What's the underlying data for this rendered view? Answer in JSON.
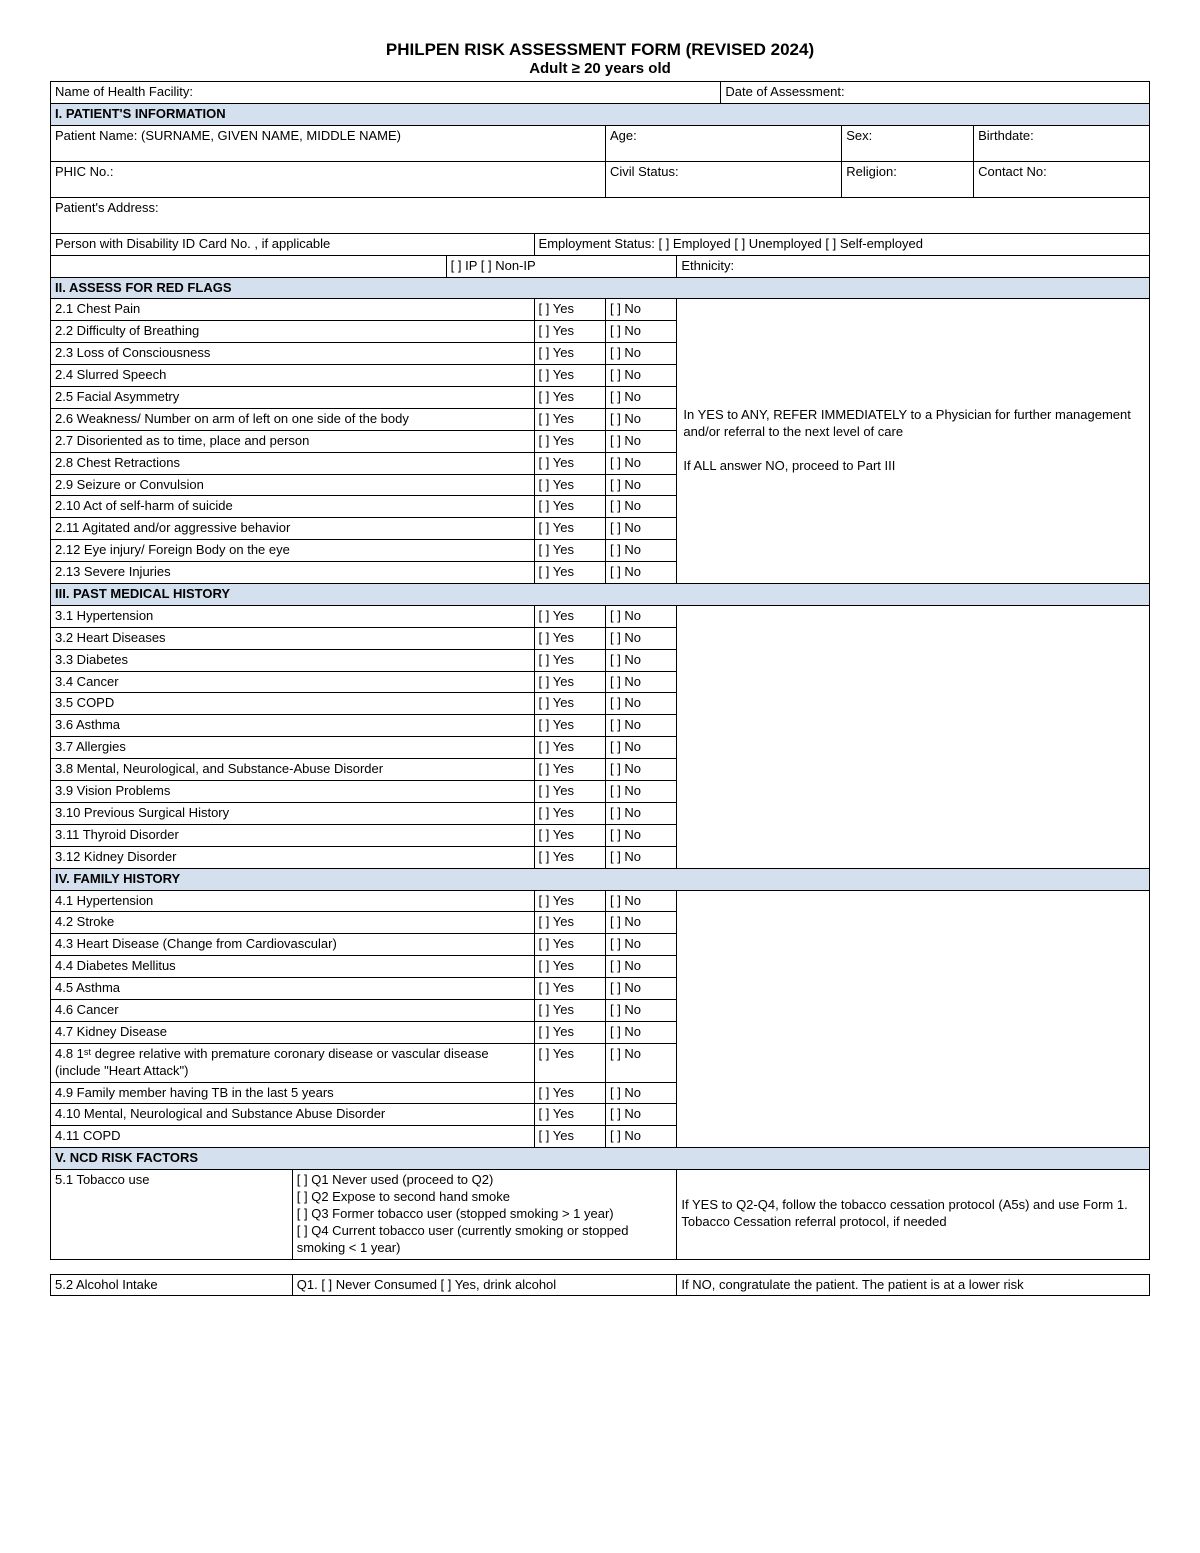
{
  "title": "PHILPEN RISK ASSESSMENT FORM (REVISED 2024)",
  "subtitle": "Adult ≥ 20 years old",
  "colors": {
    "section_bg": "#d5e0ee",
    "border": "#000000",
    "text": "#000000",
    "bg": "#ffffff"
  },
  "header": {
    "facility_label": "Name of Health Facility:",
    "date_label": "Date of Assessment:"
  },
  "s1": {
    "title": "I. PATIENT'S INFORMATION",
    "name_label": "Patient Name: (SURNAME, GIVEN NAME, MIDDLE NAME)",
    "age_label": "Age:",
    "sex_label": "Sex:",
    "birthdate_label": "Birthdate:",
    "phic_label": "PHIC No.:",
    "civil_label": "Civil Status:",
    "religion_label": "Religion:",
    "contact_label": "Contact No:",
    "address_label": "Patient's Address:",
    "pwd_label": "Person with Disability ID Card No. , if applicable",
    "emp_label": "Employment Status:  [  ] Employed      [  ] Unemployed      [  ] Self-employed",
    "ip_label": "[  ] IP          [  ] Non-IP",
    "ethnicity_label": "Ethnicity:"
  },
  "s2": {
    "title": "II. ASSESS FOR RED FLAGS",
    "note": "In YES to ANY, REFER IMMEDIATELY to a Physician for further management and/or referral to the next level of care\n\nIf ALL answer NO, proceed to Part III",
    "items": [
      "2.1 Chest Pain",
      "2.2 Difficulty of Breathing",
      "2.3 Loss of Consciousness",
      "2.4 Slurred Speech",
      "2.5 Facial Asymmetry",
      "2.6 Weakness/ Number on arm of left on one side of the body",
      "2.7 Disoriented as to time, place and person",
      "2.8 Chest Retractions",
      "2.9 Seizure or Convulsion",
      "2.10 Act of self-harm of suicide",
      "2.11 Agitated and/or aggressive behavior",
      "2.12 Eye injury/ Foreign Body on the eye",
      "2.13 Severe Injuries"
    ]
  },
  "s3": {
    "title": "III. PAST MEDICAL HISTORY",
    "items": [
      "3.1 Hypertension",
      "3.2 Heart Diseases",
      "3.3 Diabetes",
      "3.4 Cancer",
      "3.5 COPD",
      "3.6 Asthma",
      "3.7 Allergies",
      "3.8 Mental, Neurological, and Substance-Abuse Disorder",
      "3.9 Vision Problems",
      "3.10 Previous Surgical History",
      "3.11 Thyroid Disorder",
      "3.12 Kidney Disorder"
    ]
  },
  "s4": {
    "title": "IV. FAMILY HISTORY",
    "items": [
      "4.1 Hypertension",
      "4.2 Stroke",
      "4.3 Heart Disease (Change from Cardiovascular)",
      "4.4 Diabetes Mellitus",
      "4.5 Asthma",
      "4.6 Cancer",
      "4.7 Kidney Disease",
      "4.8 1ˢᵗ degree relative with premature coronary disease or vascular disease (include \"Heart Attack\")",
      "4.9 Family member having TB in the last 5 years",
      "4.10 Mental, Neurological and Substance Abuse Disorder",
      "4.11 COPD"
    ]
  },
  "s5": {
    "title": "V. NCD RISK FACTORS",
    "tobacco_label": "5.1 Tobacco use",
    "tobacco_options": "[  ] Q1 Never used (proceed to Q2)\n[  ] Q2 Expose to second hand smoke\n[  ] Q3 Former tobacco user (stopped smoking > 1 year)\n[  ] Q4 Current tobacco user (currently smoking or stopped smoking < 1 year)",
    "tobacco_note": "If YES to Q2-Q4, follow the tobacco cessation protocol (A5s) and use Form 1. Tobacco Cessation referral protocol, if needed",
    "alcohol_label": "5.2 Alcohol Intake",
    "alcohol_options": "Q1. [  ] Never Consumed      [  ] Yes, drink alcohol",
    "alcohol_note": "If NO, congratulate the patient. The patient is at a lower risk"
  },
  "yn": {
    "yes": "[  ] Yes",
    "no": "[  ] No"
  }
}
